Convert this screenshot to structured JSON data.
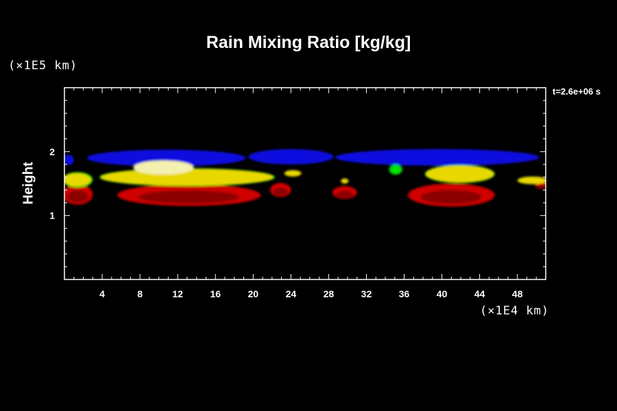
{
  "chart_data": {
    "type": "heatmap",
    "title": "Rain Mixing Ratio [kg/kg]",
    "xlabel": "",
    "ylabel": "Height",
    "x_unit": "(×1E4 km)",
    "y_unit": "(×1E5 km)",
    "annotation": "t=2.6e+06 s",
    "xlim": [
      0,
      51
    ],
    "ylim": [
      0,
      3
    ],
    "x_ticks": [
      4,
      8,
      12,
      16,
      20,
      24,
      28,
      32,
      36,
      40,
      44,
      48
    ],
    "y_ticks": [
      1,
      2
    ],
    "colors": {
      "blue": "#1010e0",
      "yellow": "#e8d800",
      "red": "#d00000",
      "green": "#00e000",
      "dark_red": "#700000",
      "pale": "#f4f0b0"
    },
    "regions": [
      {
        "level": "blue",
        "x": 0.4,
        "y": 1.87,
        "rx": 0.6,
        "ry": 0.08
      },
      {
        "level": "blue",
        "x": 10.8,
        "y": 1.9,
        "rx": 8.4,
        "ry": 0.13
      },
      {
        "level": "blue",
        "x": 24.0,
        "y": 1.92,
        "rx": 4.5,
        "ry": 0.12
      },
      {
        "level": "blue",
        "x": 39.5,
        "y": 1.91,
        "rx": 10.8,
        "ry": 0.13
      },
      {
        "level": "red",
        "x": 1.4,
        "y": 1.33,
        "rx": 1.6,
        "ry": 0.16
      },
      {
        "level": "red",
        "x": 13.2,
        "y": 1.32,
        "rx": 7.6,
        "ry": 0.17
      },
      {
        "level": "red",
        "x": 22.9,
        "y": 1.4,
        "rx": 1.1,
        "ry": 0.11
      },
      {
        "level": "red",
        "x": 29.7,
        "y": 1.36,
        "rx": 1.3,
        "ry": 0.1
      },
      {
        "level": "red",
        "x": 41.0,
        "y": 1.32,
        "rx": 4.6,
        "ry": 0.18
      },
      {
        "level": "red",
        "x": 50.5,
        "y": 1.48,
        "rx": 0.6,
        "ry": 0.06
      },
      {
        "level": "green",
        "x": 1.4,
        "y": 1.56,
        "rx": 1.6,
        "ry": 0.12
      },
      {
        "level": "yellow",
        "x": 1.3,
        "y": 1.56,
        "rx": 1.5,
        "ry": 0.1
      },
      {
        "level": "green",
        "x": 13.0,
        "y": 1.6,
        "rx": 9.3,
        "ry": 0.14
      },
      {
        "level": "yellow",
        "x": 13.0,
        "y": 1.6,
        "rx": 9.1,
        "ry": 0.13
      },
      {
        "level": "pale",
        "x": 10.5,
        "y": 1.75,
        "rx": 3.2,
        "ry": 0.11
      },
      {
        "level": "yellow",
        "x": 24.2,
        "y": 1.66,
        "rx": 0.9,
        "ry": 0.05
      },
      {
        "level": "yellow",
        "x": 29.7,
        "y": 1.54,
        "rx": 0.4,
        "ry": 0.04
      },
      {
        "level": "green",
        "x": 35.1,
        "y": 1.72,
        "rx": 0.7,
        "ry": 0.08
      },
      {
        "level": "green",
        "x": 41.9,
        "y": 1.65,
        "rx": 3.7,
        "ry": 0.14
      },
      {
        "level": "yellow",
        "x": 41.9,
        "y": 1.65,
        "rx": 3.6,
        "ry": 0.13
      },
      {
        "level": "yellow",
        "x": 49.6,
        "y": 1.55,
        "rx": 1.6,
        "ry": 0.06
      }
    ]
  }
}
